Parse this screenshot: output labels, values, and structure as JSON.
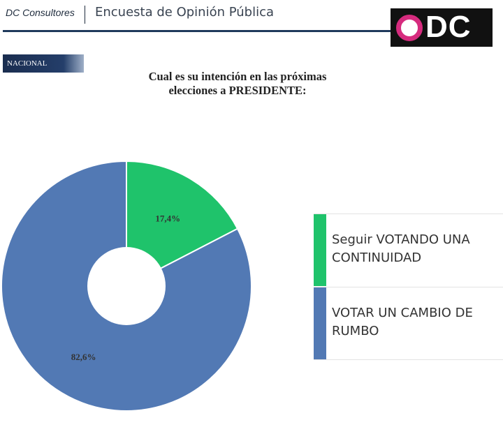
{
  "header": {
    "brand": "DC Consultores",
    "title": "Encuesta de Opinión Pública",
    "logo_text": "DC",
    "logo_ring_color": "#d62b7e"
  },
  "region_label": "NACIONAL",
  "chart_data": {
    "type": "pie",
    "variant": "donut",
    "title": "Cual es su intención en  las próximas elecciones a PRESIDENTE:",
    "title_lines": [
      "Cual es su intención en  las próximas",
      "elecciones a PRESIDENTE:"
    ],
    "categories": [
      "Seguir VOTANDO UNA CONTINUIDAD",
      "VOTAR UN CAMBIO DE RUMBO"
    ],
    "values": [
      17.4,
      82.6
    ],
    "value_labels": [
      "17,4%",
      "82,6%"
    ],
    "colors": [
      "#1fc36b",
      "#5279b4"
    ],
    "legend_placement": "right"
  },
  "legend": {
    "items": [
      {
        "label": "Seguir VOTANDO UNA CONTINUIDAD",
        "color": "#1fc36b"
      },
      {
        "label": "VOTAR UN CAMBIO DE RUMBO",
        "color": "#5279b4"
      }
    ]
  }
}
